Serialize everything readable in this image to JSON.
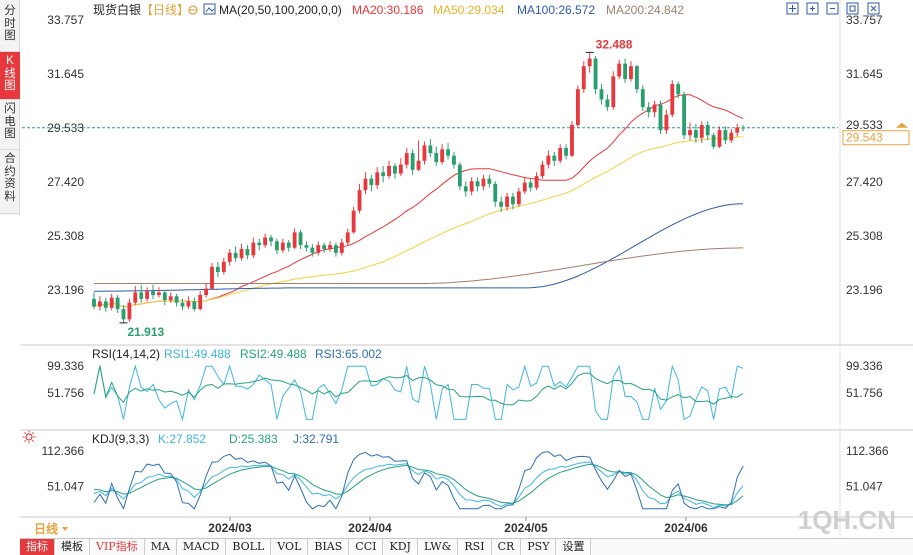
{
  "sidebar": {
    "items": [
      {
        "label": "分时图",
        "active": false
      },
      {
        "label": "K线图",
        "active": true
      },
      {
        "label": "闪电图",
        "active": false
      },
      {
        "label": "合约资料",
        "active": false
      }
    ]
  },
  "header": {
    "instrument": "现货白银",
    "period_tag": "【日线】",
    "ma_label": "MA(20,50,100,200,0,0)",
    "ma20": "MA20:30.186",
    "ma50": "MA50:29.034",
    "ma100": "MA100:26.572",
    "ma200": "MA200:24.842"
  },
  "toolbar": {
    "icons": [
      "move-icon",
      "zoom-in-icon",
      "zoom-out-icon",
      "restore-icon",
      "close-icon"
    ]
  },
  "colors": {
    "up": "#e6383d",
    "down": "#2b9e6e",
    "ma20": "#e8353b",
    "ma50": "#f2d23c",
    "ma100": "#2f5aa8",
    "ma200": "#a27e6e",
    "rsi1": "#3fb5e3",
    "rsi2": "#27a27d",
    "rsi3": "#2d6fb3",
    "kdj_k": "#3fb5e3",
    "kdj_d": "#27a27d",
    "kdj_j": "#2d6fb3",
    "price_line": "#3a8ea6",
    "current_tag": "#e6a23c"
  },
  "price_axis": {
    "ticks": [
      "33.757",
      "31.645",
      "29.533",
      "27.420",
      "25.308",
      "23.196"
    ],
    "current_price": "29.543",
    "high_label": "32.488",
    "low_label": "21.913"
  },
  "rsi": {
    "title": "RSI(14,14,2)",
    "rsi1": "RSI1:49.488",
    "rsi2": "RSI2:49.488",
    "rsi3": "RSI3:65.002",
    "ticks": [
      "99.336",
      "51.756"
    ]
  },
  "kdj": {
    "title": "KDJ(9,3,3)",
    "k": "K:27.852",
    "d": "D:25.383",
    "j": "J:32.791",
    "ticks": [
      "112.366",
      "51.047"
    ]
  },
  "x_axis": {
    "period_label": "日线",
    "dates": [
      "2024/03",
      "2024/04",
      "2024/05",
      "2024/06"
    ]
  },
  "watermark": "1QH.CN",
  "indicator_tabs": [
    {
      "label": "指标",
      "active": true,
      "vip": false
    },
    {
      "label": "模板",
      "active": false,
      "vip": false
    },
    {
      "label": "VIP指标",
      "active": false,
      "vip": true
    },
    {
      "label": "MA",
      "active": false,
      "vip": false
    },
    {
      "label": "MACD",
      "active": false,
      "vip": false
    },
    {
      "label": "BOLL",
      "active": false,
      "vip": false
    },
    {
      "label": "VOL",
      "active": false,
      "vip": false
    },
    {
      "label": "BIAS",
      "active": false,
      "vip": false
    },
    {
      "label": "CCI",
      "active": false,
      "vip": false
    },
    {
      "label": "KDJ",
      "active": false,
      "vip": false
    },
    {
      "label": "LW&",
      "active": false,
      "vip": false
    },
    {
      "label": "RSI",
      "active": false,
      "vip": false
    },
    {
      "label": "CR",
      "active": false,
      "vip": false
    },
    {
      "label": "PSY",
      "active": false,
      "vip": false
    },
    {
      "label": "设置",
      "active": false,
      "vip": false
    }
  ],
  "chart_data": {
    "type": "candlestick",
    "candles": [
      [
        22.85,
        22.55,
        23.1,
        22.45
      ],
      [
        22.55,
        22.75,
        22.95,
        22.4
      ],
      [
        22.75,
        22.5,
        22.9,
        22.35
      ],
      [
        22.5,
        22.9,
        23.05,
        22.4
      ],
      [
        22.9,
        22.45,
        23.0,
        22.3
      ],
      [
        22.45,
        22.05,
        22.6,
        21.91
      ],
      [
        22.05,
        22.7,
        22.85,
        21.95
      ],
      [
        22.7,
        23.1,
        23.35,
        22.6
      ],
      [
        23.1,
        22.85,
        23.4,
        22.7
      ],
      [
        22.85,
        23.15,
        23.3,
        22.75
      ],
      [
        23.15,
        23.0,
        23.4,
        22.85
      ],
      [
        23.0,
        23.1,
        23.3,
        22.9
      ],
      [
        23.1,
        22.8,
        23.2,
        22.6
      ],
      [
        22.8,
        22.95,
        23.1,
        22.7
      ],
      [
        22.95,
        22.7,
        23.05,
        22.55
      ],
      [
        22.7,
        22.55,
        22.85,
        22.4
      ],
      [
        22.55,
        22.75,
        22.95,
        22.45
      ],
      [
        22.75,
        22.45,
        22.9,
        22.35
      ],
      [
        22.45,
        23.0,
        23.15,
        22.4
      ],
      [
        23.0,
        23.25,
        23.45,
        22.9
      ],
      [
        23.25,
        24.1,
        24.25,
        23.2
      ],
      [
        24.1,
        23.9,
        24.3,
        23.7
      ],
      [
        23.9,
        24.3,
        24.45,
        23.8
      ],
      [
        24.3,
        24.65,
        24.8,
        24.15
      ],
      [
        24.65,
        24.45,
        24.9,
        24.3
      ],
      [
        24.45,
        24.8,
        25.0,
        24.35
      ],
      [
        24.8,
        24.55,
        24.95,
        24.4
      ],
      [
        24.55,
        25.05,
        25.25,
        24.45
      ],
      [
        25.05,
        24.95,
        25.2,
        24.75
      ],
      [
        24.95,
        25.25,
        25.4,
        24.85
      ],
      [
        25.25,
        25.1,
        25.35,
        24.9
      ],
      [
        25.1,
        24.75,
        25.2,
        24.6
      ],
      [
        24.75,
        25.05,
        25.2,
        24.65
      ],
      [
        25.05,
        24.85,
        25.15,
        24.7
      ],
      [
        24.85,
        25.45,
        25.6,
        24.8
      ],
      [
        25.45,
        24.95,
        25.55,
        24.8
      ],
      [
        24.95,
        24.85,
        25.1,
        24.7
      ],
      [
        24.85,
        24.65,
        25.0,
        24.5
      ],
      [
        24.65,
        24.95,
        25.1,
        24.55
      ],
      [
        24.95,
        24.8,
        25.05,
        24.65
      ],
      [
        24.8,
        24.95,
        25.1,
        24.7
      ],
      [
        24.95,
        24.65,
        25.05,
        24.5
      ],
      [
        24.65,
        25.05,
        25.2,
        24.55
      ],
      [
        25.05,
        25.45,
        25.6,
        24.95
      ],
      [
        25.45,
        26.3,
        26.45,
        25.4
      ],
      [
        26.3,
        27.1,
        27.35,
        26.2
      ],
      [
        27.1,
        27.55,
        27.8,
        26.95
      ],
      [
        27.55,
        27.3,
        27.7,
        27.05
      ],
      [
        27.3,
        27.8,
        28.0,
        27.15
      ],
      [
        27.8,
        27.65,
        28.05,
        27.4
      ],
      [
        27.65,
        28.05,
        28.25,
        27.55
      ],
      [
        28.05,
        27.75,
        28.15,
        27.55
      ],
      [
        27.75,
        28.1,
        28.35,
        27.65
      ],
      [
        28.1,
        28.55,
        28.75,
        27.95
      ],
      [
        28.55,
        27.9,
        28.7,
        27.7
      ],
      [
        27.9,
        28.25,
        29.05,
        27.85
      ],
      [
        28.25,
        28.85,
        29.0,
        28.1
      ],
      [
        28.85,
        28.55,
        29.1,
        28.4
      ],
      [
        28.55,
        28.2,
        28.8,
        28.05
      ],
      [
        28.2,
        28.7,
        28.9,
        28.1
      ],
      [
        28.7,
        28.45,
        28.95,
        28.3
      ],
      [
        28.45,
        28.1,
        28.6,
        27.95
      ],
      [
        28.1,
        27.25,
        28.2,
        27.1
      ],
      [
        27.25,
        27.05,
        27.45,
        26.85
      ],
      [
        27.05,
        27.45,
        27.6,
        26.9
      ],
      [
        27.45,
        27.25,
        27.6,
        27.05
      ],
      [
        27.25,
        27.55,
        27.7,
        27.1
      ],
      [
        27.55,
        27.35,
        27.7,
        27.2
      ],
      [
        27.35,
        26.65,
        27.45,
        26.45
      ],
      [
        26.65,
        26.45,
        26.85,
        26.25
      ],
      [
        26.45,
        26.85,
        27.0,
        26.3
      ],
      [
        26.85,
        26.55,
        27.0,
        26.35
      ],
      [
        26.55,
        27.05,
        27.2,
        26.45
      ],
      [
        27.05,
        27.4,
        27.6,
        26.95
      ],
      [
        27.4,
        27.2,
        27.55,
        27.05
      ],
      [
        27.2,
        27.65,
        27.8,
        27.1
      ],
      [
        27.65,
        28.1,
        28.25,
        27.55
      ],
      [
        28.1,
        28.45,
        28.65,
        27.95
      ],
      [
        28.45,
        28.25,
        28.6,
        28.05
      ],
      [
        28.25,
        28.75,
        28.9,
        28.15
      ],
      [
        28.75,
        28.45,
        28.9,
        28.3
      ],
      [
        28.45,
        29.65,
        29.8,
        28.4
      ],
      [
        29.65,
        31.05,
        31.2,
        29.55
      ],
      [
        31.05,
        31.95,
        32.15,
        30.9
      ],
      [
        31.95,
        32.25,
        32.49,
        31.7
      ],
      [
        32.25,
        31.05,
        32.35,
        30.85
      ],
      [
        31.05,
        30.65,
        31.25,
        30.45
      ],
      [
        30.65,
        30.35,
        30.85,
        30.2
      ],
      [
        30.35,
        31.55,
        31.75,
        30.25
      ],
      [
        31.55,
        32.05,
        32.2,
        31.45
      ],
      [
        32.05,
        31.45,
        32.25,
        31.3
      ],
      [
        31.45,
        31.95,
        32.15,
        31.35
      ],
      [
        31.95,
        31.05,
        32.0,
        30.9
      ],
      [
        31.05,
        30.35,
        31.2,
        30.2
      ],
      [
        30.35,
        30.15,
        30.55,
        29.95
      ],
      [
        30.15,
        30.45,
        30.6,
        29.95
      ],
      [
        30.45,
        29.45,
        30.6,
        29.3
      ],
      [
        29.45,
        30.05,
        30.25,
        29.3
      ],
      [
        30.05,
        31.25,
        31.4,
        29.95
      ],
      [
        31.25,
        30.85,
        31.35,
        30.7
      ],
      [
        30.85,
        29.25,
        30.95,
        29.1
      ],
      [
        29.25,
        29.45,
        29.75,
        29.05
      ],
      [
        29.45,
        29.15,
        29.7,
        28.95
      ],
      [
        29.15,
        29.65,
        29.8,
        28.95
      ],
      [
        29.65,
        29.25,
        29.8,
        29.05
      ],
      [
        29.25,
        28.8,
        29.35,
        28.7
      ],
      [
        28.8,
        29.45,
        29.6,
        28.75
      ],
      [
        29.45,
        29.05,
        29.6,
        28.9
      ],
      [
        29.05,
        29.35,
        29.5,
        28.95
      ],
      [
        29.35,
        29.55,
        29.7,
        29.2
      ],
      [
        29.55,
        29.54,
        29.65,
        29.4
      ]
    ],
    "high": 32.488,
    "low": 21.913,
    "y_ticks": [
      33.757,
      31.645,
      29.533,
      27.42,
      25.308,
      23.196
    ],
    "ma100_endpoints": [
      23.15,
      23.28,
      23.28,
      26.572
    ],
    "ma200_endpoints": [
      23.45,
      23.45,
      24.842
    ],
    "rsi_ticks": [
      99.336,
      51.756
    ],
    "kdj_ticks": [
      112.366,
      51.047
    ],
    "x_tick_labels": [
      "2024/03",
      "2024/04",
      "2024/05",
      "2024/06"
    ]
  }
}
